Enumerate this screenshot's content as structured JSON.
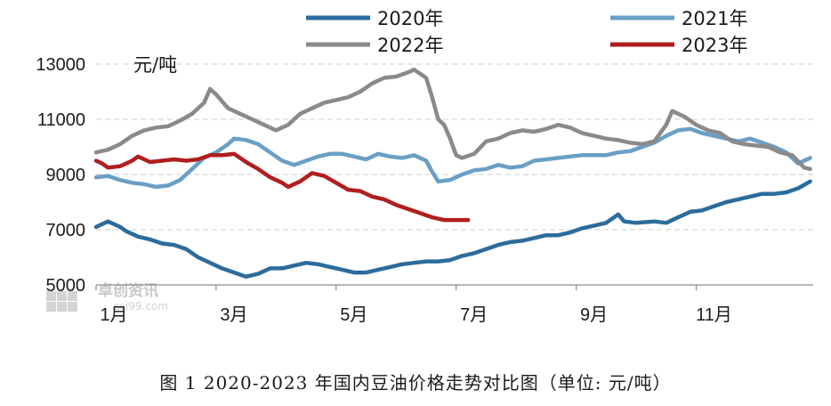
{
  "caption": "图 1 2020-2023 年国内豆油价格走势对比图（单位: 元/吨）",
  "watermark": {
    "name": "卓创资讯",
    "site": "sci99.com"
  },
  "chart_data": {
    "type": "line",
    "unit_label": "元/吨",
    "title": "",
    "xlabel": "",
    "ylabel": "",
    "ylim": [
      5000,
      13000
    ],
    "yticks": [
      5000,
      7000,
      9000,
      11000,
      13000
    ],
    "ytick_labels": [
      "5000",
      "7000",
      "9000",
      "11000",
      "13000"
    ],
    "xlim": [
      1,
      12.95
    ],
    "xticks": [
      1,
      3,
      5,
      7,
      9,
      11
    ],
    "xtick_labels": [
      "1月",
      "3月",
      "5月",
      "7月",
      "9月",
      "11月"
    ],
    "grid": "horizontal-dashed",
    "legend_position": "top",
    "series": [
      {
        "name": "2020年",
        "color": "#2c6c9c",
        "points": [
          [
            1.0,
            7100
          ],
          [
            1.2,
            7300
          ],
          [
            1.4,
            7100
          ],
          [
            1.5,
            6950
          ],
          [
            1.7,
            6750
          ],
          [
            1.9,
            6650
          ],
          [
            2.1,
            6500
          ],
          [
            2.3,
            6450
          ],
          [
            2.5,
            6300
          ],
          [
            2.7,
            6000
          ],
          [
            2.9,
            5800
          ],
          [
            3.1,
            5600
          ],
          [
            3.3,
            5450
          ],
          [
            3.5,
            5300
          ],
          [
            3.7,
            5400
          ],
          [
            3.9,
            5600
          ],
          [
            4.1,
            5600
          ],
          [
            4.3,
            5700
          ],
          [
            4.5,
            5800
          ],
          [
            4.7,
            5750
          ],
          [
            4.9,
            5650
          ],
          [
            5.1,
            5550
          ],
          [
            5.3,
            5450
          ],
          [
            5.5,
            5450
          ],
          [
            5.7,
            5550
          ],
          [
            5.9,
            5650
          ],
          [
            6.1,
            5750
          ],
          [
            6.3,
            5800
          ],
          [
            6.5,
            5850
          ],
          [
            6.7,
            5850
          ],
          [
            6.9,
            5900
          ],
          [
            7.1,
            6050
          ],
          [
            7.3,
            6150
          ],
          [
            7.5,
            6300
          ],
          [
            7.7,
            6450
          ],
          [
            7.9,
            6550
          ],
          [
            8.1,
            6600
          ],
          [
            8.3,
            6700
          ],
          [
            8.5,
            6800
          ],
          [
            8.7,
            6800
          ],
          [
            8.9,
            6900
          ],
          [
            9.1,
            7050
          ],
          [
            9.3,
            7150
          ],
          [
            9.5,
            7250
          ],
          [
            9.7,
            7550
          ],
          [
            9.8,
            7300
          ],
          [
            10.0,
            7250
          ],
          [
            10.3,
            7300
          ],
          [
            10.5,
            7250
          ],
          [
            10.7,
            7450
          ],
          [
            10.9,
            7650
          ],
          [
            11.1,
            7700
          ],
          [
            11.3,
            7850
          ],
          [
            11.5,
            8000
          ],
          [
            11.7,
            8100
          ],
          [
            11.9,
            8200
          ],
          [
            12.1,
            8300
          ],
          [
            12.3,
            8300
          ],
          [
            12.5,
            8350
          ],
          [
            12.7,
            8500
          ],
          [
            12.9,
            8750
          ]
        ]
      },
      {
        "name": "2021年",
        "color": "#6a9fc5",
        "points": [
          [
            1.0,
            8900
          ],
          [
            1.2,
            8950
          ],
          [
            1.4,
            8800
          ],
          [
            1.6,
            8700
          ],
          [
            1.8,
            8650
          ],
          [
            2.0,
            8550
          ],
          [
            2.2,
            8600
          ],
          [
            2.4,
            8800
          ],
          [
            2.6,
            9200
          ],
          [
            2.8,
            9600
          ],
          [
            3.0,
            9800
          ],
          [
            3.2,
            10100
          ],
          [
            3.3,
            10300
          ],
          [
            3.5,
            10250
          ],
          [
            3.7,
            10100
          ],
          [
            3.9,
            9800
          ],
          [
            4.1,
            9500
          ],
          [
            4.3,
            9350
          ],
          [
            4.5,
            9500
          ],
          [
            4.7,
            9650
          ],
          [
            4.9,
            9750
          ],
          [
            5.1,
            9750
          ],
          [
            5.3,
            9650
          ],
          [
            5.5,
            9550
          ],
          [
            5.7,
            9750
          ],
          [
            5.9,
            9650
          ],
          [
            6.1,
            9600
          ],
          [
            6.3,
            9700
          ],
          [
            6.5,
            9500
          ],
          [
            6.6,
            9100
          ],
          [
            6.7,
            8750
          ],
          [
            6.9,
            8800
          ],
          [
            7.1,
            9000
          ],
          [
            7.3,
            9150
          ],
          [
            7.5,
            9200
          ],
          [
            7.7,
            9350
          ],
          [
            7.9,
            9250
          ],
          [
            8.1,
            9300
          ],
          [
            8.3,
            9500
          ],
          [
            8.5,
            9550
          ],
          [
            8.7,
            9600
          ],
          [
            8.9,
            9650
          ],
          [
            9.1,
            9700
          ],
          [
            9.3,
            9700
          ],
          [
            9.5,
            9700
          ],
          [
            9.7,
            9800
          ],
          [
            9.9,
            9850
          ],
          [
            10.1,
            10000
          ],
          [
            10.3,
            10150
          ],
          [
            10.5,
            10400
          ],
          [
            10.7,
            10600
          ],
          [
            10.9,
            10650
          ],
          [
            11.1,
            10500
          ],
          [
            11.3,
            10400
          ],
          [
            11.5,
            10300
          ],
          [
            11.7,
            10200
          ],
          [
            11.9,
            10300
          ],
          [
            12.1,
            10150
          ],
          [
            12.3,
            10000
          ],
          [
            12.5,
            9800
          ],
          [
            12.7,
            9400
          ],
          [
            12.9,
            9600
          ]
        ]
      },
      {
        "name": "2022年",
        "color": "#8a8a8a",
        "points": [
          [
            1.0,
            9800
          ],
          [
            1.2,
            9900
          ],
          [
            1.4,
            10100
          ],
          [
            1.6,
            10400
          ],
          [
            1.8,
            10600
          ],
          [
            2.0,
            10700
          ],
          [
            2.2,
            10750
          ],
          [
            2.4,
            10950
          ],
          [
            2.6,
            11200
          ],
          [
            2.8,
            11600
          ],
          [
            2.9,
            12100
          ],
          [
            3.0,
            11900
          ],
          [
            3.2,
            11400
          ],
          [
            3.4,
            11200
          ],
          [
            3.6,
            11000
          ],
          [
            3.8,
            10800
          ],
          [
            4.0,
            10600
          ],
          [
            4.2,
            10800
          ],
          [
            4.4,
            11200
          ],
          [
            4.6,
            11400
          ],
          [
            4.8,
            11600
          ],
          [
            5.0,
            11700
          ],
          [
            5.2,
            11800
          ],
          [
            5.4,
            12000
          ],
          [
            5.6,
            12300
          ],
          [
            5.8,
            12500
          ],
          [
            6.0,
            12550
          ],
          [
            6.2,
            12700
          ],
          [
            6.3,
            12800
          ],
          [
            6.5,
            12500
          ],
          [
            6.6,
            11800
          ],
          [
            6.7,
            11000
          ],
          [
            6.8,
            10800
          ],
          [
            6.9,
            10300
          ],
          [
            7.0,
            9700
          ],
          [
            7.1,
            9600
          ],
          [
            7.3,
            9750
          ],
          [
            7.5,
            10200
          ],
          [
            7.7,
            10300
          ],
          [
            7.9,
            10500
          ],
          [
            8.1,
            10600
          ],
          [
            8.3,
            10550
          ],
          [
            8.5,
            10650
          ],
          [
            8.7,
            10800
          ],
          [
            8.9,
            10700
          ],
          [
            9.1,
            10500
          ],
          [
            9.3,
            10400
          ],
          [
            9.5,
            10300
          ],
          [
            9.7,
            10250
          ],
          [
            9.9,
            10150
          ],
          [
            10.1,
            10100
          ],
          [
            10.3,
            10200
          ],
          [
            10.5,
            10800
          ],
          [
            10.6,
            11300
          ],
          [
            10.8,
            11100
          ],
          [
            11.0,
            10800
          ],
          [
            11.2,
            10600
          ],
          [
            11.4,
            10500
          ],
          [
            11.6,
            10200
          ],
          [
            11.8,
            10100
          ],
          [
            12.0,
            10050
          ],
          [
            12.2,
            10000
          ],
          [
            12.4,
            9800
          ],
          [
            12.6,
            9700
          ],
          [
            12.8,
            9250
          ],
          [
            12.9,
            9200
          ]
        ]
      },
      {
        "name": "2023年",
        "color": "#b01e1e",
        "points": [
          [
            1.0,
            9500
          ],
          [
            1.1,
            9400
          ],
          [
            1.2,
            9250
          ],
          [
            1.4,
            9300
          ],
          [
            1.6,
            9500
          ],
          [
            1.7,
            9650
          ],
          [
            1.9,
            9450
          ],
          [
            2.1,
            9500
          ],
          [
            2.3,
            9550
          ],
          [
            2.5,
            9500
          ],
          [
            2.7,
            9550
          ],
          [
            2.9,
            9700
          ],
          [
            3.1,
            9700
          ],
          [
            3.3,
            9750
          ],
          [
            3.4,
            9600
          ],
          [
            3.5,
            9450
          ],
          [
            3.7,
            9200
          ],
          [
            3.9,
            8900
          ],
          [
            4.1,
            8700
          ],
          [
            4.2,
            8550
          ],
          [
            4.4,
            8750
          ],
          [
            4.6,
            9050
          ],
          [
            4.8,
            8950
          ],
          [
            5.0,
            8700
          ],
          [
            5.2,
            8450
          ],
          [
            5.4,
            8400
          ],
          [
            5.6,
            8200
          ],
          [
            5.8,
            8100
          ],
          [
            6.0,
            7900
          ],
          [
            6.2,
            7750
          ],
          [
            6.4,
            7600
          ],
          [
            6.6,
            7450
          ],
          [
            6.8,
            7350
          ],
          [
            7.0,
            7350
          ],
          [
            7.2,
            7350
          ]
        ]
      }
    ]
  }
}
